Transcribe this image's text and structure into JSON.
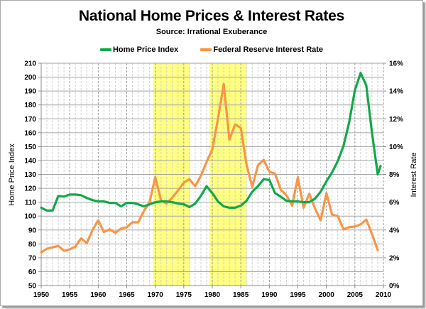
{
  "chart_data": {
    "type": "line",
    "title": "National Home Prices & Interest Rates",
    "subtitle": "Source: Irrational Exuberance",
    "xlabel": "",
    "ylabel": "Home Price Index",
    "y2label": "Interest Rate",
    "xlim": [
      1950,
      2010
    ],
    "ylim": [
      50,
      210
    ],
    "y2lim": [
      0,
      16
    ],
    "x_ticks": [
      "1950",
      "1955",
      "1960",
      "1965",
      "1970",
      "1975",
      "1980",
      "1985",
      "1990",
      "1995",
      "2000",
      "2005",
      "2010"
    ],
    "y_ticks": [
      "50",
      "60",
      "70",
      "80",
      "90",
      "100",
      "110",
      "120",
      "130",
      "140",
      "150",
      "160",
      "170",
      "180",
      "190",
      "200",
      "210"
    ],
    "y2_ticks": [
      "0%",
      "2%",
      "4%",
      "6%",
      "8%",
      "10%",
      "12%",
      "14%",
      "16%"
    ],
    "grid": true,
    "legend_position": "top",
    "highlight_periods": [
      {
        "start": 1969.6,
        "end": 1976.1,
        "color": "#ffff80"
      },
      {
        "start": 1979.5,
        "end": 1986.0,
        "color": "#ffff80"
      }
    ],
    "series": [
      {
        "name": "Home Price Index",
        "axis": "left",
        "color": "#12a84a",
        "x": [
          1950,
          1951,
          1952,
          1953,
          1954,
          1955,
          1956,
          1957,
          1958,
          1959,
          1960,
          1961,
          1962,
          1963,
          1964,
          1965,
          1966,
          1967,
          1968,
          1969,
          1970,
          1971,
          1972,
          1973,
          1974,
          1975,
          1976,
          1977,
          1978,
          1979,
          1980,
          1981,
          1982,
          1983,
          1984,
          1985,
          1986,
          1987,
          1988,
          1989,
          1990,
          1991,
          1992,
          1993,
          1994,
          1995,
          1996,
          1997,
          1998,
          1999,
          2000,
          2001,
          2002,
          2003,
          2004,
          2005,
          2006,
          2007,
          2008,
          2009,
          2009.5
        ],
        "values": [
          106,
          104,
          104,
          114.5,
          114,
          115.5,
          115.5,
          115,
          113,
          111.5,
          110.5,
          110.5,
          109.5,
          109.5,
          107,
          109.5,
          109.5,
          108.5,
          107,
          108.5,
          110,
          110.5,
          110.5,
          110,
          109,
          108.5,
          106.5,
          109,
          114.5,
          121.5,
          116.5,
          110.5,
          107,
          106,
          106,
          107.5,
          111,
          117.5,
          121.5,
          126.5,
          126,
          116.5,
          114,
          111,
          110.5,
          110.5,
          110,
          110,
          112.5,
          117.5,
          125,
          131.5,
          139.5,
          150.5,
          167.5,
          190.5,
          203,
          194,
          160,
          130,
          136
        ]
      },
      {
        "name": "Federal Reserve Interest Rate",
        "axis": "right",
        "color": "#f79646",
        "x": [
          1950,
          1951,
          1952,
          1953,
          1954,
          1955,
          1956,
          1957,
          1958,
          1959,
          1960,
          1961,
          1962,
          1963,
          1964,
          1965,
          1966,
          1967,
          1968,
          1969,
          1970,
          1971,
          1972,
          1973,
          1974,
          1975,
          1976,
          1977,
          1978,
          1979,
          1980,
          1981,
          1982,
          1983,
          1984,
          1985,
          1986,
          1987,
          1988,
          1989,
          1990,
          1991,
          1992,
          1993,
          1994,
          1995,
          1996,
          1997,
          1998,
          1999,
          2000,
          2001,
          2002,
          2003,
          2004,
          2005,
          2006,
          2007,
          2008,
          2009
        ],
        "values": [
          2.4,
          2.65,
          2.75,
          2.85,
          2.5,
          2.6,
          2.8,
          3.4,
          3.05,
          4.0,
          4.7,
          3.85,
          4.05,
          3.8,
          4.1,
          4.2,
          4.55,
          4.55,
          5.35,
          6.0,
          7.8,
          6.15,
          5.9,
          6.35,
          6.85,
          7.4,
          7.65,
          7.15,
          7.9,
          8.9,
          9.8,
          12.0,
          14.5,
          10.5,
          11.6,
          11.35,
          8.7,
          7.1,
          8.65,
          9.05,
          8.2,
          8.05,
          6.9,
          6.5,
          5.75,
          7.8,
          5.6,
          6.6,
          5.55,
          4.7,
          6.65,
          5.1,
          5.0,
          4.05,
          4.2,
          4.25,
          4.4,
          4.75,
          3.7,
          2.55
        ]
      }
    ]
  },
  "colors": {
    "highlight": "#ffff80",
    "grid_major": "#a6a6a6",
    "grid_minor": "#d0d0d0"
  }
}
